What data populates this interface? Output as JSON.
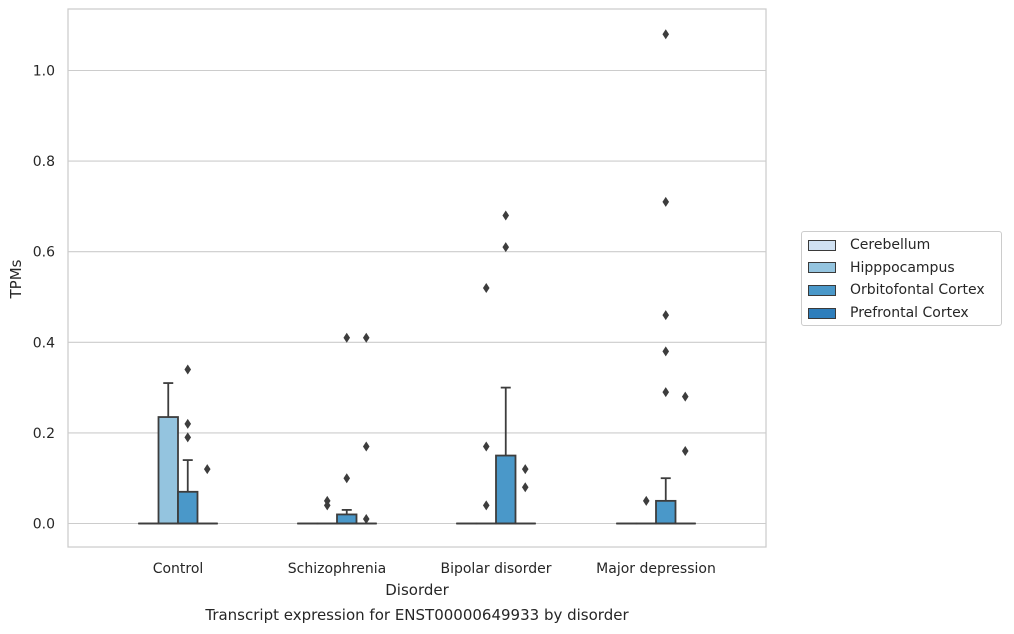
{
  "chart_data": {
    "type": "box",
    "xlabel": "Disorder",
    "ylabel": "TPMs",
    "caption": "Transcript expression for ENST00000649933 by disorder",
    "categories": [
      "Control",
      "Schizophrenia",
      "Bipolar disorder",
      "Major depression"
    ],
    "ylim": [
      -0.05,
      1.14
    ],
    "yticks": [
      "0.0",
      "0.2",
      "0.4",
      "0.6",
      "0.8",
      "1.0"
    ],
    "grid": true,
    "legend_placement": "right",
    "series": [
      {
        "name": "Cerebellum",
        "color": "#d0e1f2",
        "boxes": [
          {
            "q1": 0,
            "median": 0,
            "q3": 0,
            "whisker_low": 0,
            "whisker_high": 0,
            "outliers": []
          },
          {
            "q1": 0,
            "median": 0,
            "q3": 0,
            "whisker_low": 0,
            "whisker_high": 0,
            "outliers": []
          },
          {
            "q1": 0,
            "median": 0,
            "q3": 0,
            "whisker_low": 0,
            "whisker_high": 0,
            "outliers": []
          },
          {
            "q1": 0,
            "median": 0,
            "q3": 0,
            "whisker_low": 0,
            "whisker_high": 0,
            "outliers": []
          }
        ]
      },
      {
        "name": "Hipppocampus",
        "color": "#94c4df",
        "boxes": [
          {
            "q1": 0,
            "median": 0,
            "q3": 0.235,
            "whisker_low": 0,
            "whisker_high": 0.31,
            "outliers": []
          },
          {
            "q1": 0,
            "median": 0,
            "q3": 0,
            "whisker_low": 0,
            "whisker_high": 0,
            "outliers": [
              0.05,
              0.04
            ]
          },
          {
            "q1": 0,
            "median": 0,
            "q3": 0,
            "whisker_low": 0,
            "whisker_high": 0,
            "outliers": [
              0.52,
              0.17,
              0.04
            ]
          },
          {
            "q1": 0,
            "median": 0,
            "q3": 0,
            "whisker_low": 0,
            "whisker_high": 0,
            "outliers": [
              0.05
            ]
          }
        ]
      },
      {
        "name": "Orbitofontal Cortex",
        "color": "#4a98c9",
        "boxes": [
          {
            "q1": 0,
            "median": 0,
            "q3": 0.07,
            "whisker_low": 0,
            "whisker_high": 0.14,
            "outliers": [
              0.34,
              0.22,
              0.19
            ]
          },
          {
            "q1": 0,
            "median": 0,
            "q3": 0.02,
            "whisker_low": 0,
            "whisker_high": 0.03,
            "outliers": [
              0.41,
              0.1
            ]
          },
          {
            "q1": 0,
            "median": 0,
            "q3": 0.15,
            "whisker_low": 0,
            "whisker_high": 0.3,
            "outliers": [
              0.68,
              0.61
            ]
          },
          {
            "q1": 0,
            "median": 0,
            "q3": 0.05,
            "whisker_low": 0,
            "whisker_high": 0.1,
            "outliers": [
              1.08,
              0.71,
              0.46,
              0.38,
              0.29
            ]
          }
        ]
      },
      {
        "name": "Prefrontal Cortex",
        "color": "#2e7ebc",
        "boxes": [
          {
            "q1": 0,
            "median": 0,
            "q3": 0,
            "whisker_low": 0,
            "whisker_high": 0,
            "outliers": [
              0.12
            ]
          },
          {
            "q1": 0,
            "median": 0,
            "q3": 0,
            "whisker_low": 0,
            "whisker_high": 0,
            "outliers": [
              0.41,
              0.17,
              0.01
            ]
          },
          {
            "q1": 0,
            "median": 0,
            "q3": 0,
            "whisker_low": 0,
            "whisker_high": 0,
            "outliers": [
              0.12,
              0.08
            ]
          },
          {
            "q1": 0,
            "median": 0,
            "q3": 0,
            "whisker_low": 0,
            "whisker_high": 0,
            "outliers": [
              0.28,
              0.16
            ]
          }
        ]
      }
    ]
  }
}
